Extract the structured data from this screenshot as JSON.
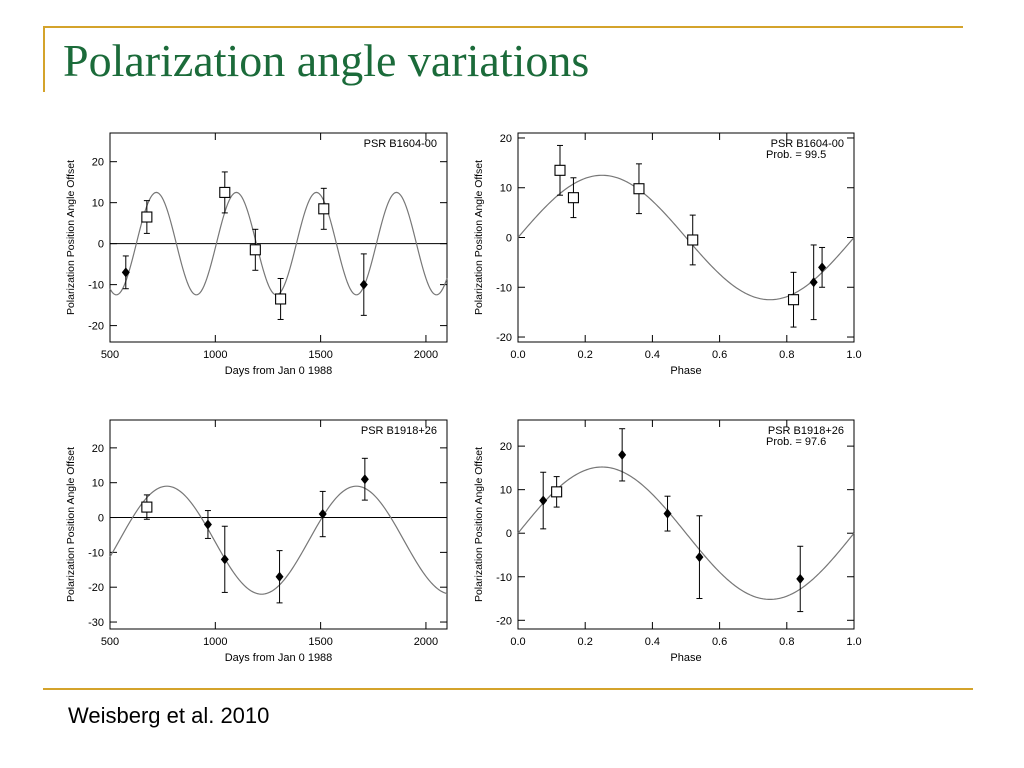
{
  "slide": {
    "title": "Polarization angle variations",
    "citation": "Weisberg et al. 2010"
  },
  "chart_data": [
    {
      "type": "scatter",
      "title": "PSR B1604-00",
      "xlabel": "Days from Jan 0 1988",
      "ylabel": "Polarization Position Angle Offset",
      "xlim": [
        500,
        2100
      ],
      "ylim": [
        -24,
        27
      ],
      "xticks": [
        500,
        1000,
        1500,
        2000
      ],
      "yticks": [
        20,
        10,
        0,
        -10,
        -20
      ],
      "zero_line": true,
      "curve": {
        "kind": "sine",
        "amplitude": 12.5,
        "period": 380,
        "peak_x": 720,
        "domain": [
          500,
          2100
        ]
      },
      "series": [
        {
          "marker": "open-square",
          "points": [
            {
              "x": 675,
              "y": 6.5,
              "err": 4
            },
            {
              "x": 1045,
              "y": 12.5,
              "err": 5
            },
            {
              "x": 1190,
              "y": -1.5,
              "err": 5
            },
            {
              "x": 1310,
              "y": -13.5,
              "err": 5
            },
            {
              "x": 1515,
              "y": 8.5,
              "err": 5
            }
          ]
        },
        {
          "marker": "filled-diamond",
          "points": [
            {
              "x": 575,
              "y": -7,
              "err": 4
            },
            {
              "x": 1705,
              "y": -10,
              "err": 7.5
            }
          ]
        }
      ]
    },
    {
      "type": "scatter",
      "title": "PSR B1604-00",
      "annotation": "Prob. = 99.5",
      "xlabel": "Phase",
      "ylabel": "Polarization Position Angle Offset",
      "xlim": [
        0.0,
        1.0
      ],
      "ylim": [
        -21,
        21
      ],
      "xticks": [
        "0.0",
        "0.2",
        "0.4",
        "0.6",
        "0.8",
        "1.0"
      ],
      "yticks": [
        20,
        10,
        0,
        -10,
        -20
      ],
      "zero_line": false,
      "curve": {
        "kind": "sine",
        "amplitude": 12.5,
        "period": 1.0,
        "peak_x": 0.25,
        "domain": [
          0,
          1
        ]
      },
      "series": [
        {
          "marker": "open-square",
          "points": [
            {
              "x": 0.125,
              "y": 13.5,
              "err": 5
            },
            {
              "x": 0.165,
              "y": 8.0,
              "err": 4
            },
            {
              "x": 0.36,
              "y": 9.8,
              "err": 5
            },
            {
              "x": 0.52,
              "y": -0.5,
              "err": 5
            },
            {
              "x": 0.82,
              "y": -12.5,
              "err": 5.5
            }
          ]
        },
        {
          "marker": "filled-diamond",
          "points": [
            {
              "x": 0.88,
              "y": -9,
              "err": 7.5
            },
            {
              "x": 0.905,
              "y": -6,
              "err": 4
            }
          ]
        }
      ]
    },
    {
      "type": "scatter",
      "title": "PSR B1918+26",
      "xlabel": "Days from Jan 0 1988",
      "ylabel": "Polarization Position Angle Offset",
      "xlim": [
        500,
        2100
      ],
      "ylim": [
        -32,
        28
      ],
      "xticks": [
        500,
        1000,
        1500,
        2000
      ],
      "yticks": [
        20,
        10,
        0,
        -10,
        -20,
        -30
      ],
      "zero_line": true,
      "curve": {
        "kind": "sine",
        "amplitude": 15.5,
        "period": 900,
        "peak_x": 770,
        "offset": -6.5,
        "domain": [
          500,
          2100
        ]
      },
      "series": [
        {
          "marker": "open-square",
          "points": [
            {
              "x": 675,
              "y": 3,
              "err": 3.5
            }
          ]
        },
        {
          "marker": "filled-diamond",
          "points": [
            {
              "x": 965,
              "y": -2,
              "err": 4
            },
            {
              "x": 1045,
              "y": -12,
              "err": 9.5
            },
            {
              "x": 1305,
              "y": -17,
              "err": 7.5
            },
            {
              "x": 1510,
              "y": 1,
              "err": 6.5
            },
            {
              "x": 1710,
              "y": 11,
              "err": 6
            }
          ]
        }
      ]
    },
    {
      "type": "scatter",
      "title": "PSR B1918+26",
      "annotation": "Prob. = 97.6",
      "xlabel": "Phase",
      "ylabel": "Polarization Position Angle Offset",
      "xlim": [
        0.0,
        1.0
      ],
      "ylim": [
        -22,
        26
      ],
      "xticks": [
        "0.0",
        "0.2",
        "0.4",
        "0.6",
        "0.8",
        "1.0"
      ],
      "yticks": [
        20,
        10,
        0,
        -10,
        -20
      ],
      "zero_line": false,
      "curve": {
        "kind": "sine",
        "amplitude": 15.2,
        "period": 1.0,
        "peak_x": 0.25,
        "domain": [
          0,
          1
        ]
      },
      "series": [
        {
          "marker": "open-square",
          "points": [
            {
              "x": 0.115,
              "y": 9.5,
              "err": 3.5
            }
          ]
        },
        {
          "marker": "filled-diamond",
          "points": [
            {
              "x": 0.075,
              "y": 7.5,
              "err": 6.5
            },
            {
              "x": 0.31,
              "y": 18,
              "err": 6
            },
            {
              "x": 0.445,
              "y": 4.5,
              "err": 4
            },
            {
              "x": 0.54,
              "y": -5.5,
              "err": 9.5
            },
            {
              "x": 0.84,
              "y": -10.5,
              "err": 7.5
            }
          ]
        }
      ]
    }
  ]
}
